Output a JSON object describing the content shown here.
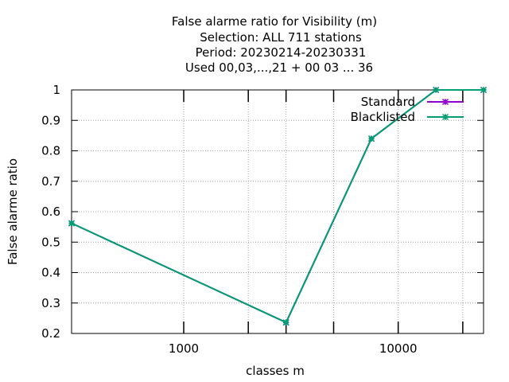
{
  "chart_data": {
    "type": "line",
    "title": [
      "False alarme ratio  for Visibility (m)",
      "Selection: ALL    711 stations",
      "Period: 20230214-20230331",
      "Used  00,03,...,21  + 00 03 ... 36"
    ],
    "xlabel": "classes m",
    "ylabel": "False alarme ratio",
    "xscale": "log",
    "xlim": [
      300,
      25000
    ],
    "ylim": [
      0.2,
      1.0
    ],
    "xticks": [
      {
        "value": 1000,
        "label": "1000"
      },
      {
        "value": 10000,
        "label": "10000"
      }
    ],
    "xminor": [
      2000,
      3000,
      5000,
      20000
    ],
    "yticks": [
      {
        "value": 0.2,
        "label": "0.2"
      },
      {
        "value": 0.3,
        "label": "0.3"
      },
      {
        "value": 0.4,
        "label": "0.4"
      },
      {
        "value": 0.5,
        "label": "0.5"
      },
      {
        "value": 0.6,
        "label": "0.6"
      },
      {
        "value": 0.7,
        "label": "0.7"
      },
      {
        "value": 0.8,
        "label": "0.8"
      },
      {
        "value": 0.9,
        "label": "0.9"
      },
      {
        "value": 1.0,
        "label": "1"
      }
    ],
    "grid": true,
    "legend_position": "top-right",
    "series": [
      {
        "name": "Standard",
        "color": "#9400d3",
        "x": [
          300,
          3000,
          7500,
          15000,
          25000
        ],
        "y": [
          0.562,
          0.236,
          0.84,
          1.0,
          1.0
        ]
      },
      {
        "name": "Blacklisted",
        "color": "#009e73",
        "x": [
          300,
          3000,
          7500,
          15000,
          25000
        ],
        "y": [
          0.562,
          0.236,
          0.84,
          1.0,
          1.0
        ]
      }
    ]
  }
}
